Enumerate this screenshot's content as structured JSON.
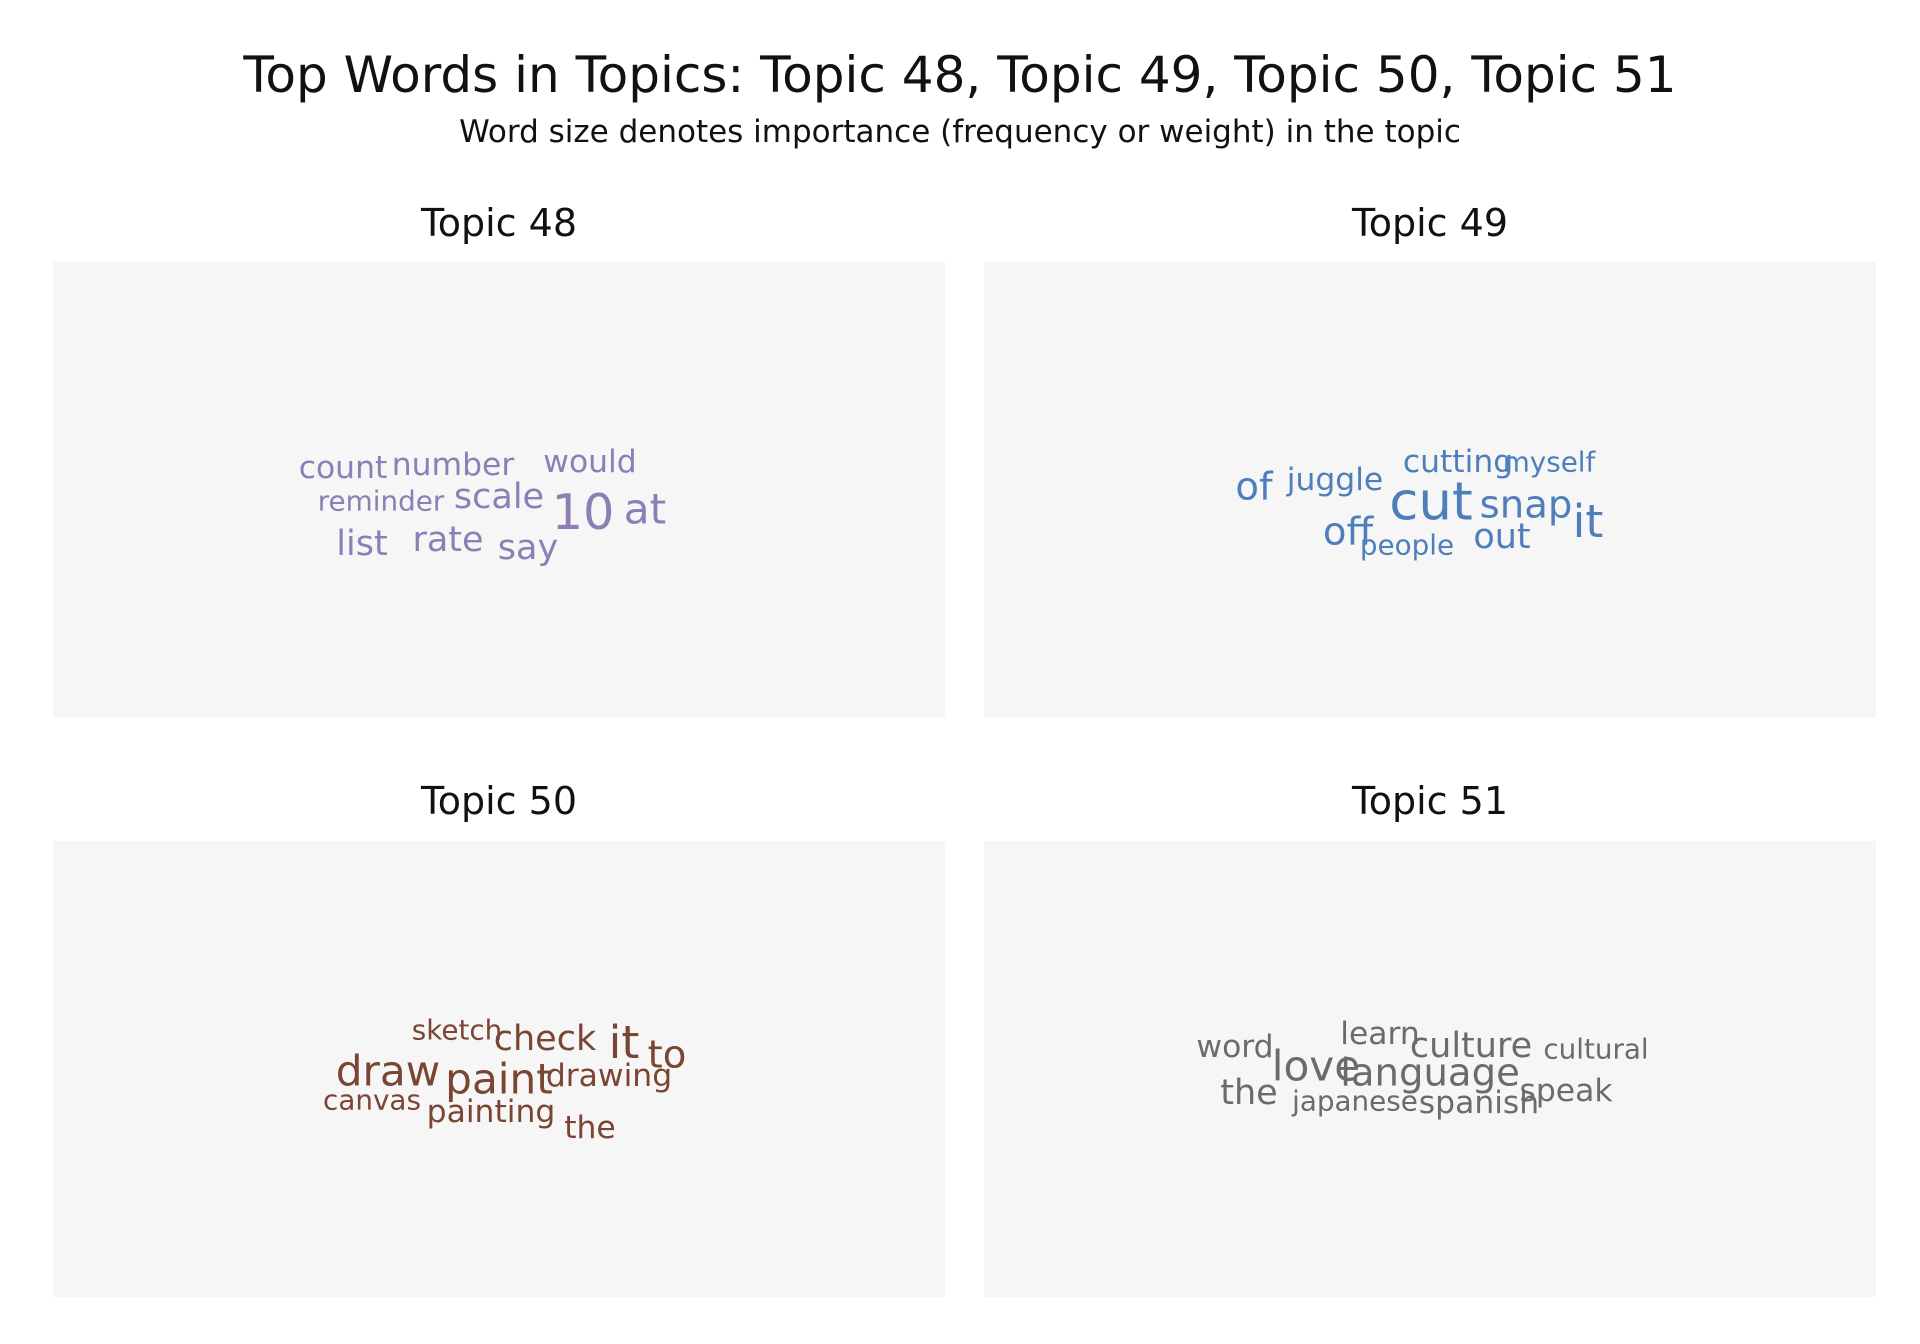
{
  "title": "Top Words in Topics: Topic 48, Topic 49, Topic 50, Topic 51",
  "subtitle": "Word size denotes importance (frequency or weight) in the topic",
  "chart_data": [
    {
      "type": "wordcloud",
      "title": "Topic 48",
      "color": "#8d7fb6",
      "words": [
        {
          "text": "count",
          "weight": 4
        },
        {
          "text": "number",
          "weight": 4
        },
        {
          "text": "would",
          "weight": 4
        },
        {
          "text": "reminder",
          "weight": 3
        },
        {
          "text": "scale",
          "weight": 5
        },
        {
          "text": "10",
          "weight": 9
        },
        {
          "text": "at",
          "weight": 7
        },
        {
          "text": "list",
          "weight": 5
        },
        {
          "text": "rate",
          "weight": 5
        },
        {
          "text": "say",
          "weight": 5
        }
      ]
    },
    {
      "type": "wordcloud",
      "title": "Topic 49",
      "color": "#4f7fba",
      "words": [
        {
          "text": "of",
          "weight": 6
        },
        {
          "text": "juggle",
          "weight": 4
        },
        {
          "text": "cutting",
          "weight": 4
        },
        {
          "text": "myself",
          "weight": 3
        },
        {
          "text": "cut",
          "weight": 10
        },
        {
          "text": "snap",
          "weight": 6
        },
        {
          "text": "it",
          "weight": 8
        },
        {
          "text": "off",
          "weight": 6
        },
        {
          "text": "people",
          "weight": 3
        },
        {
          "text": "out",
          "weight": 5
        }
      ]
    },
    {
      "type": "wordcloud",
      "title": "Topic 50",
      "color": "#7a4533",
      "words": [
        {
          "text": "sketch",
          "weight": 3
        },
        {
          "text": "check",
          "weight": 5
        },
        {
          "text": "it",
          "weight": 8
        },
        {
          "text": "to",
          "weight": 6
        },
        {
          "text": "draw",
          "weight": 7
        },
        {
          "text": "paint",
          "weight": 7
        },
        {
          "text": "drawing",
          "weight": 4
        },
        {
          "text": "canvas",
          "weight": 3
        },
        {
          "text": "painting",
          "weight": 4
        },
        {
          "text": "the",
          "weight": 4
        }
      ]
    },
    {
      "type": "wordcloud",
      "title": "Topic 51",
      "color": "#6b6b6b",
      "words": [
        {
          "text": "word",
          "weight": 4
        },
        {
          "text": "learn",
          "weight": 4
        },
        {
          "text": "culture",
          "weight": 5
        },
        {
          "text": "cultural",
          "weight": 3
        },
        {
          "text": "love",
          "weight": 7
        },
        {
          "text": "language",
          "weight": 6
        },
        {
          "text": "the",
          "weight": 5
        },
        {
          "text": "japanese",
          "weight": 3
        },
        {
          "text": "spanish",
          "weight": 4
        },
        {
          "text": "speak",
          "weight": 4
        }
      ]
    }
  ]
}
